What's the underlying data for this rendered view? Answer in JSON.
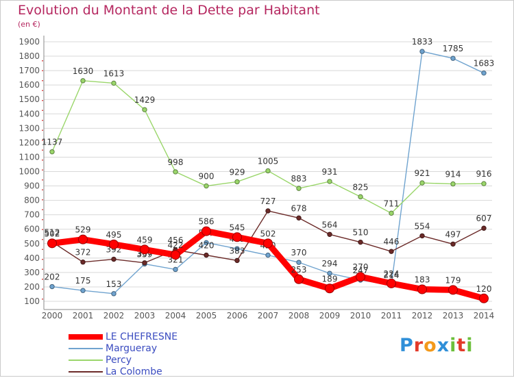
{
  "header": {
    "title": "Evolution du Montant de la Dette par Habitant",
    "unit": "(en €)"
  },
  "logo": {
    "text": "Proxiti"
  },
  "chart_data": {
    "type": "line",
    "title": "Evolution du Montant de la Dette par Habitant",
    "subtitle": "(en €)",
    "xlabel": "",
    "ylabel": "",
    "x": [
      "2000",
      "2001",
      "2002",
      "2003",
      "2004",
      "2005",
      "2006",
      "2007",
      "2008",
      "2009",
      "2010",
      "2011",
      "2012",
      "2013",
      "2014"
    ],
    "ylim": [
      100,
      1900
    ],
    "yticks": [
      100,
      200,
      300,
      400,
      500,
      600,
      700,
      800,
      900,
      1000,
      1100,
      1200,
      1300,
      1400,
      1500,
      1600,
      1700,
      1800,
      1900
    ],
    "grid": true,
    "legend_position": "bottom-left",
    "series": [
      {
        "name": "Margueray",
        "color": "#6fa3cf",
        "values": [
          202,
          175,
          153,
          359,
          321,
          507,
          465,
          420,
          370,
          294,
          247,
          214,
          1833,
          1785,
          1683
        ]
      },
      {
        "name": "Percy",
        "color": "#9ad66a",
        "values": [
          1137,
          1630,
          1613,
          1429,
          998,
          900,
          929,
          1005,
          883,
          931,
          825,
          711,
          921,
          914,
          916
        ]
      },
      {
        "name": "La Colombe",
        "color": "#6b2a28",
        "values": [
          512,
          372,
          392,
          367,
          456,
          420,
          383,
          727,
          678,
          564,
          510,
          446,
          554,
          497,
          607
        ]
      },
      {
        "name": "LE CHEFRESNE",
        "color": "#ff0000",
        "values": [
          502,
          529,
          495,
          459,
          422,
          586,
          545,
          502,
          253,
          189,
          270,
          224,
          183,
          179,
          120
        ]
      }
    ]
  }
}
